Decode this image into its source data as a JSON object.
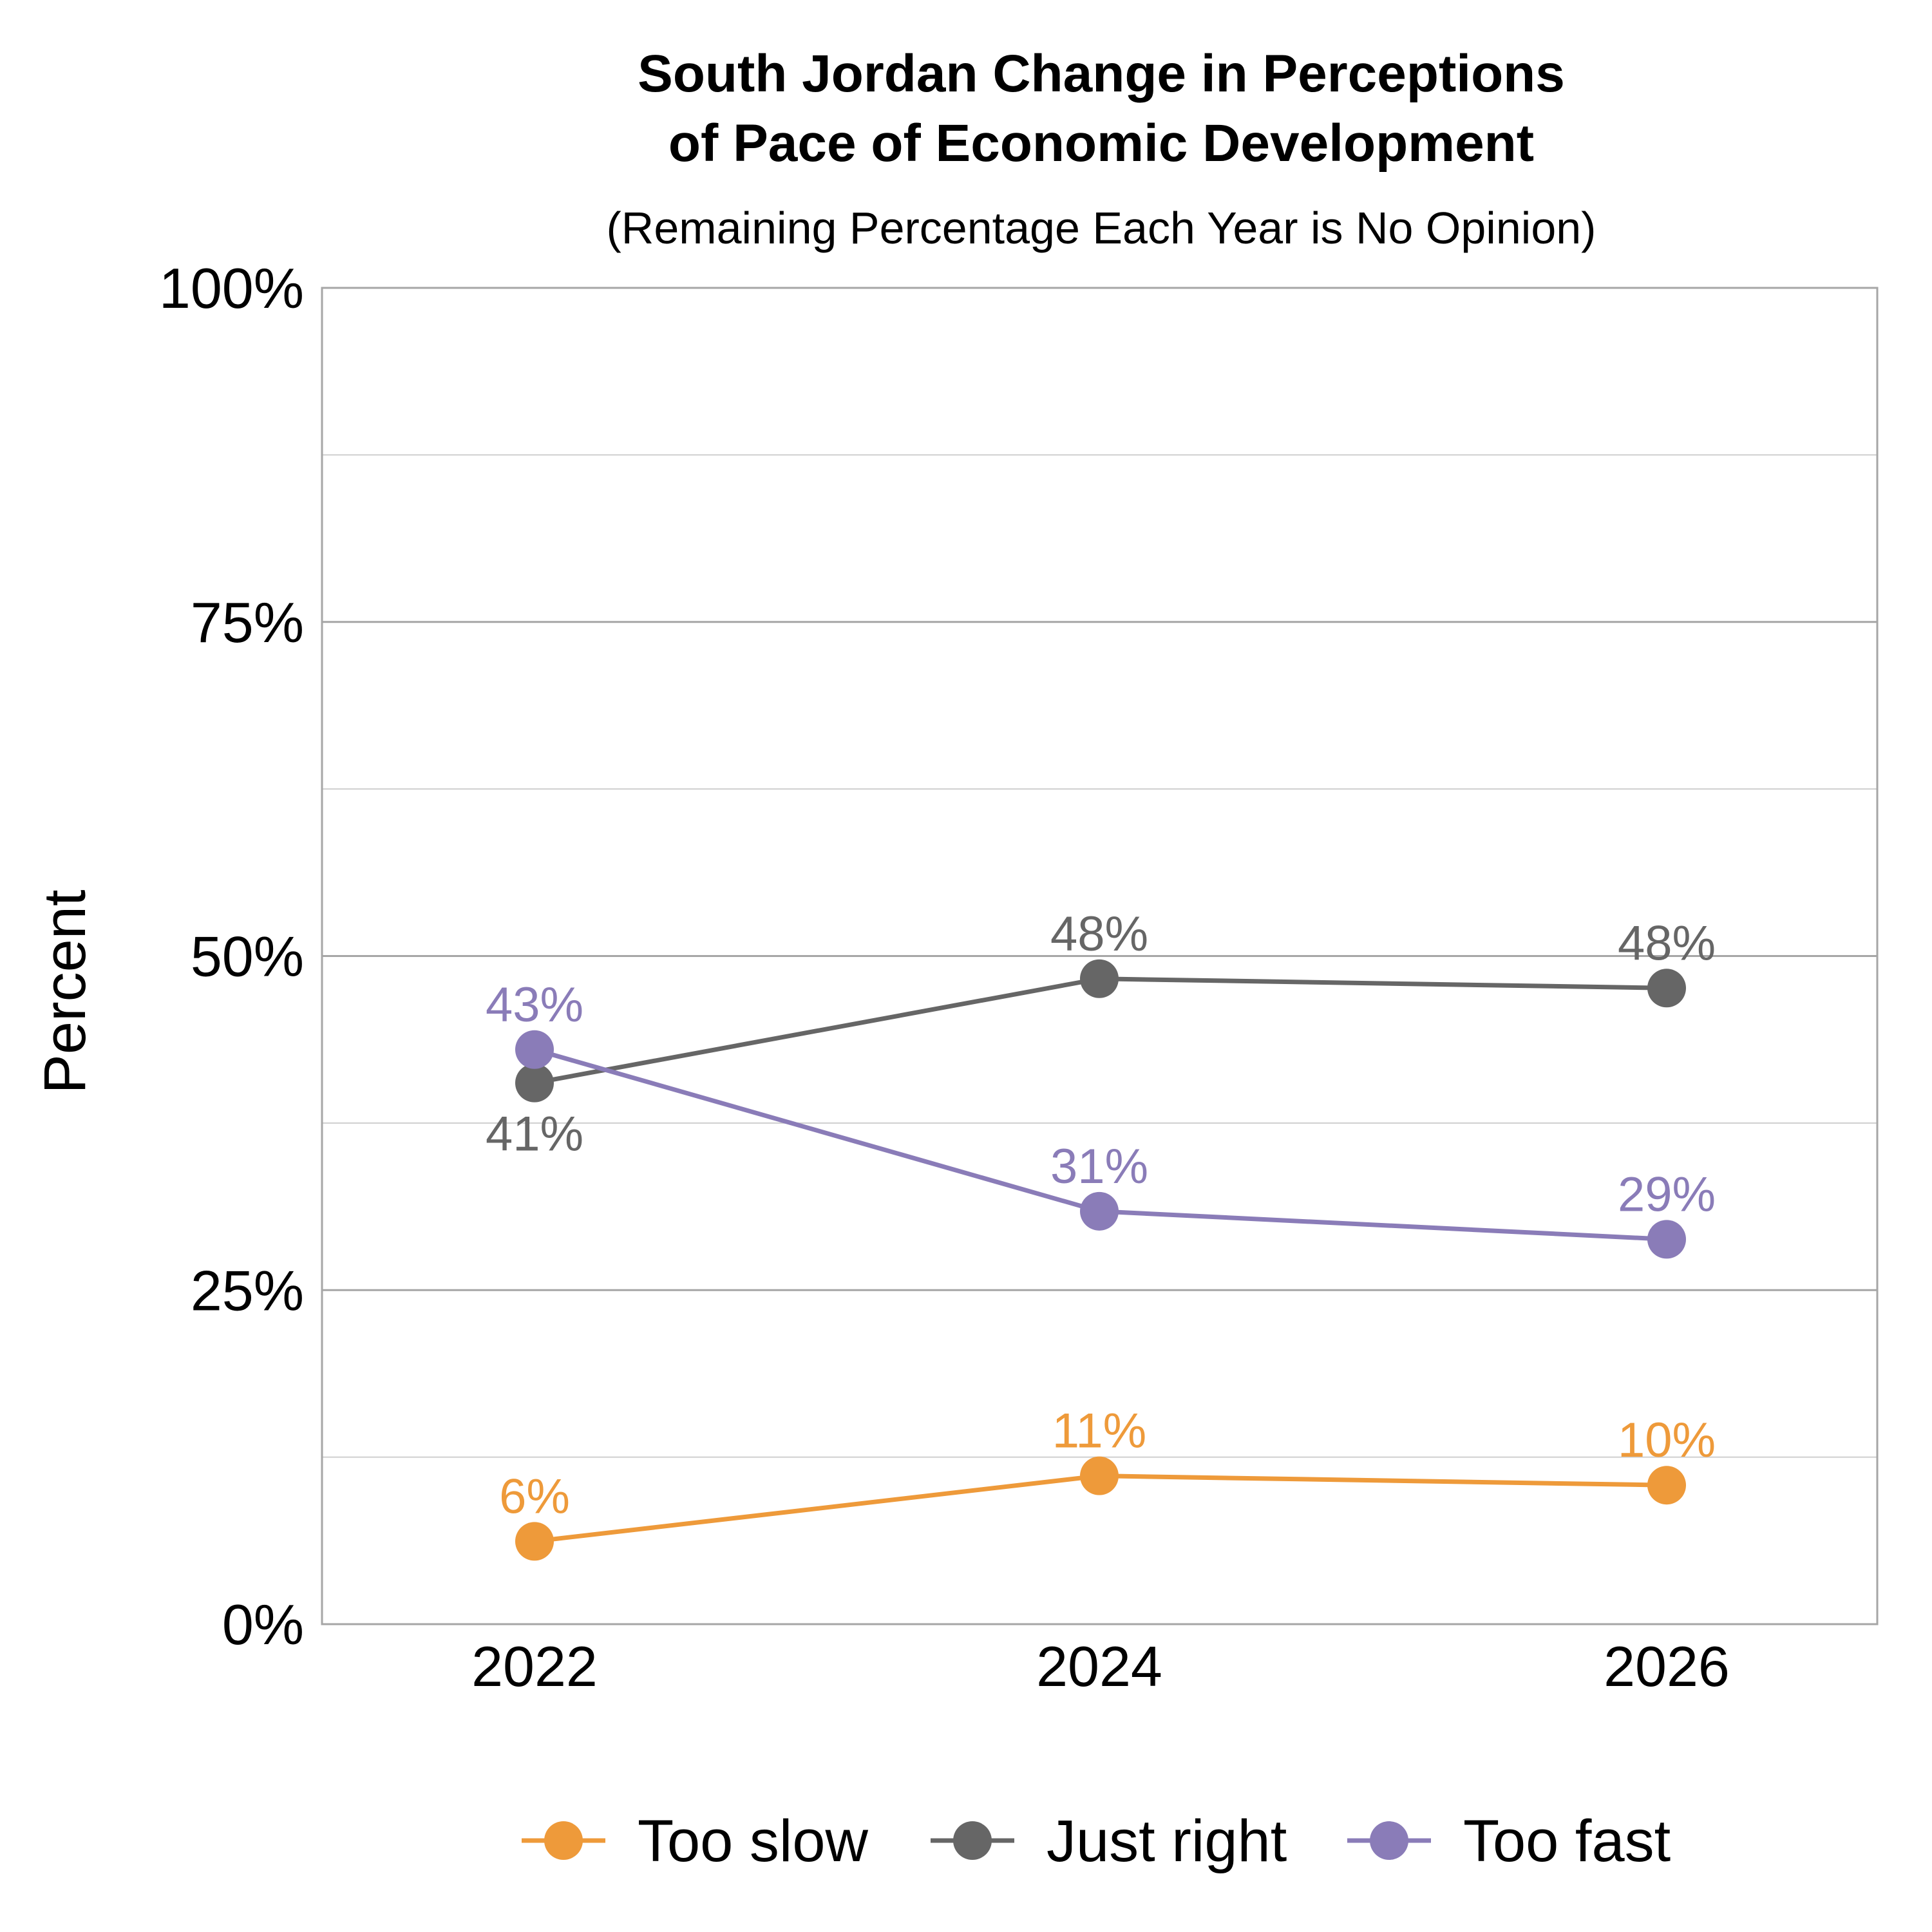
{
  "chart_data": {
    "type": "line",
    "title_lines": [
      "South Jordan Change in Perceptions",
      "of Pace of Economic Development"
    ],
    "subtitle": "(Remaining Percentage Each Year is No Opinion)",
    "xlabel": "",
    "ylabel": "Percent",
    "x": [
      "2022",
      "2024",
      "2026"
    ],
    "ylim": [
      0,
      100
    ],
    "yticks": [
      0,
      25,
      50,
      75,
      100
    ],
    "ytick_labels": [
      "0%",
      "25%",
      "50%",
      "75%",
      "100%"
    ],
    "grid": true,
    "legend_position": "bottom",
    "series": [
      {
        "name": "Too slow",
        "color": "#EE9A3A",
        "values": [
          6.2,
          11.1,
          10.4
        ],
        "labels": [
          "6%",
          "11%",
          "10%"
        ],
        "label_pos": [
          "above",
          "above",
          "above"
        ]
      },
      {
        "name": "Just right",
        "color": "#666666",
        "values": [
          40.5,
          48.3,
          47.6
        ],
        "labels": [
          "41%",
          "48%",
          "48%"
        ],
        "label_pos": [
          "below",
          "above",
          "above"
        ]
      },
      {
        "name": "Too fast",
        "color": "#8A7CB8",
        "values": [
          43.0,
          30.9,
          28.8
        ],
        "labels": [
          "43%",
          "31%",
          "29%"
        ],
        "label_pos": [
          "above",
          "above",
          "above"
        ]
      }
    ]
  }
}
